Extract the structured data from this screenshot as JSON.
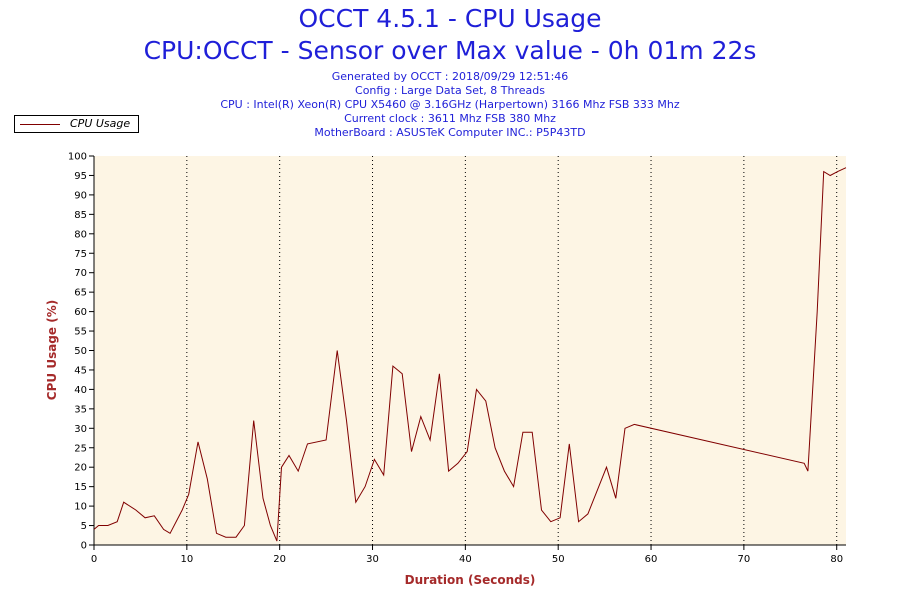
{
  "header": {
    "title": "OCCT 4.5.1 - CPU Usage",
    "subtitle": "CPU:OCCT - Sensor over Max value - 0h 01m 22s",
    "info": [
      "Generated by OCCT : 2018/09/29 12:51:46",
      "Config : Large Data Set, 8 Threads",
      "CPU : Intel(R) Xeon(R) CPU X5460 @ 3.16GHz (Harpertown) 3166 Mhz FSB 333 Mhz",
      "Current clock : 3611 Mhz FSB 380 Mhz",
      "MotherBoard : ASUSTeK Computer INC.: P5P43TD"
    ]
  },
  "legend": {
    "label": "CPU Usage"
  },
  "colors": {
    "line": "#800000",
    "plot_bg": "#fdf5e4",
    "text": "#1f1fd8",
    "axis_title": "#a52a2a"
  },
  "chart_data": {
    "type": "line",
    "xlabel": "Duration (Seconds)",
    "ylabel": "CPU Usage (%)",
    "xlim": [
      0,
      81
    ],
    "ylim": [
      0,
      100
    ],
    "x_ticks": [
      0,
      10,
      20,
      30,
      40,
      50,
      60,
      70,
      80
    ],
    "y_ticks": [
      0,
      5,
      10,
      15,
      20,
      25,
      30,
      35,
      40,
      45,
      50,
      55,
      60,
      65,
      70,
      75,
      80,
      85,
      90,
      95,
      100
    ],
    "grid": "vertical dotted",
    "legend_position": "top-left",
    "series": [
      {
        "name": "CPU Usage",
        "x": [
          0,
          0.5,
          1.5,
          2.5,
          3.2,
          4.5,
          5.5,
          6.5,
          7.5,
          8.2,
          9.5,
          10.2,
          11.2,
          12.2,
          13.2,
          14.2,
          15.3,
          16.2,
          17.2,
          18.2,
          19.0,
          19.7,
          20.2,
          21.0,
          22.0,
          23.0,
          25.0,
          26.2,
          27.2,
          28.2,
          29.2,
          30.2,
          31.2,
          32.2,
          33.2,
          34.2,
          35.2,
          36.2,
          37.2,
          38.2,
          39.2,
          40.2,
          41.2,
          42.2,
          43.2,
          44.2,
          45.2,
          46.2,
          47.2,
          48.2,
          49.2,
          50.2,
          51.2,
          52.2,
          53.2,
          55.2,
          56.2,
          57.2,
          58.2,
          76.5,
          76.9,
          77.9,
          78.6,
          79.3,
          80.1,
          81.0
        ],
        "y": [
          4,
          5,
          5,
          6,
          11,
          9,
          7,
          7.5,
          4,
          3,
          9,
          13,
          26.5,
          17,
          3,
          2,
          2,
          5,
          32,
          12,
          5,
          1,
          20,
          23,
          19,
          26,
          27,
          50,
          32,
          11,
          15,
          22,
          18,
          46,
          44,
          24,
          33,
          27,
          44,
          19,
          21,
          24,
          40,
          37,
          25,
          19,
          15,
          29,
          29,
          9,
          6,
          7,
          26,
          6,
          8,
          20,
          12,
          30,
          31,
          21,
          19,
          60,
          96,
          95,
          96,
          97
        ]
      }
    ]
  }
}
